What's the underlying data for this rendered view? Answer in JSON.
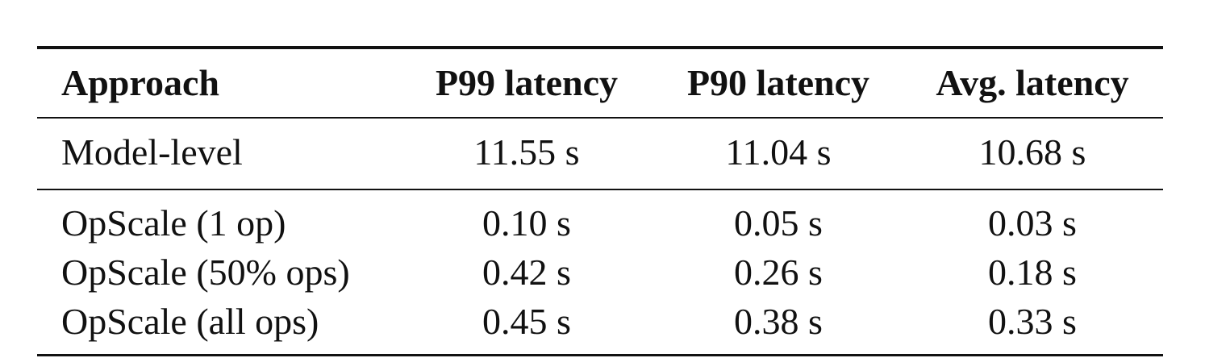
{
  "table": {
    "headers": [
      "Approach",
      "P99 latency",
      "P90 latency",
      "Avg. latency"
    ],
    "rows": [
      [
        "Model-level",
        "11.55 s",
        "11.04 s",
        "10.68 s"
      ],
      [
        "OpScale (1 op)",
        "0.10 s",
        "0.05 s",
        "0.03 s"
      ],
      [
        "OpScale (50% ops)",
        "0.42 s",
        "0.26 s",
        "0.18 s"
      ],
      [
        "OpScale (all ops)",
        "0.45 s",
        "0.38 s",
        "0.33 s"
      ]
    ]
  }
}
